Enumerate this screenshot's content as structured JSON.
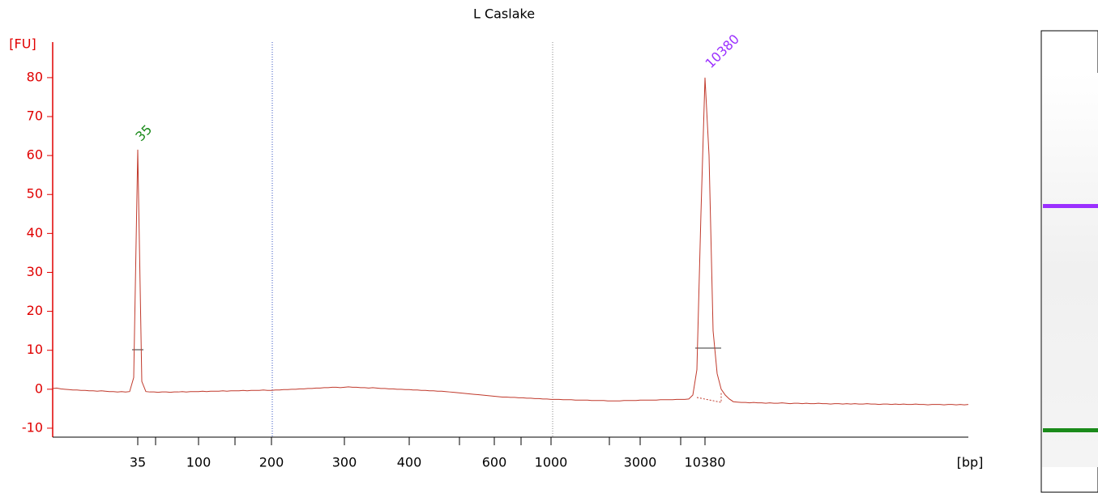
{
  "chart_data": {
    "type": "line",
    "title": "L Caslake",
    "ylabel": "[FU]",
    "xlabel": "[bp]",
    "ylim": [
      -12.3,
      88.5
    ],
    "yticks": [
      -10,
      0,
      10,
      20,
      30,
      40,
      50,
      60,
      70,
      80
    ],
    "grid": false,
    "categories": [
      null,
      null,
      null,
      null,
      null,
      null,
      null,
      null,
      null,
      null,
      null,
      null,
      null,
      null,
      null,
      null,
      null,
      null,
      null,
      null,
      null,
      "35",
      null,
      null,
      null,
      null,
      null,
      null,
      null,
      null,
      null,
      null,
      null,
      null,
      null,
      null,
      "100",
      null,
      null,
      null,
      null,
      null,
      null,
      null,
      null,
      null,
      null,
      null,
      null,
      null,
      null,
      null,
      null,
      null,
      "200",
      null,
      null,
      null,
      null,
      null,
      null,
      null,
      null,
      null,
      null,
      null,
      null,
      null,
      null,
      null,
      null,
      null,
      "300",
      null,
      null,
      null,
      null,
      null,
      null,
      null,
      null,
      null,
      null,
      null,
      null,
      null,
      null,
      null,
      "400",
      null,
      null,
      null,
      null,
      null,
      null,
      null,
      null,
      null,
      null,
      null,
      null,
      null,
      null,
      null,
      null,
      null,
      null,
      null,
      null,
      "600",
      null,
      null,
      null,
      null,
      null,
      null,
      null,
      null,
      null,
      null,
      null,
      null,
      null,
      "1000",
      null,
      null,
      null,
      null,
      null,
      null,
      null,
      null,
      null,
      null,
      null,
      null,
      null,
      null,
      null,
      null,
      null,
      null,
      null,
      null,
      null,
      "3000",
      null,
      null,
      null,
      null,
      null,
      null,
      null,
      null,
      null,
      null,
      null,
      null,
      null,
      null,
      null,
      "10380",
      null,
      null,
      null,
      null,
      null,
      null,
      null,
      null,
      null,
      null,
      null,
      null,
      null,
      null,
      null,
      null,
      null,
      null,
      null,
      null,
      null,
      null,
      null,
      null,
      null,
      null,
      null,
      null,
      null,
      null,
      null,
      null,
      null,
      null,
      null,
      null,
      null,
      null,
      null,
      null,
      null,
      null,
      null,
      null,
      null,
      null,
      null,
      null,
      null,
      null,
      null,
      null,
      null,
      null,
      null,
      null,
      null,
      null,
      null,
      null,
      null,
      null,
      null,
      null,
      null
    ],
    "series": [
      {
        "color": "#c0392b",
        "values": [
          0.2,
          0.3,
          0.1,
          0,
          -0.1,
          -0.2,
          -0.2,
          -0.3,
          -0.3,
          -0.4,
          -0.4,
          -0.5,
          -0.4,
          -0.5,
          -0.6,
          -0.6,
          -0.7,
          -0.6,
          -0.7,
          -0.6,
          3,
          61.5,
          2,
          -0.6,
          -0.7,
          -0.7,
          -0.8,
          -0.7,
          -0.7,
          -0.8,
          -0.7,
          -0.7,
          -0.6,
          -0.7,
          -0.6,
          -0.6,
          -0.6,
          -0.5,
          -0.6,
          -0.5,
          -0.5,
          -0.5,
          -0.4,
          -0.5,
          -0.4,
          -0.4,
          -0.4,
          -0.3,
          -0.4,
          -0.3,
          -0.3,
          -0.3,
          -0.2,
          -0.3,
          -0.3,
          -0.2,
          -0.2,
          -0.1,
          -0.1,
          0,
          0,
          0.1,
          0.1,
          0.2,
          0.2,
          0.3,
          0.3,
          0.4,
          0.4,
          0.5,
          0.5,
          0.4,
          0.5,
          0.6,
          0.5,
          0.5,
          0.4,
          0.4,
          0.3,
          0.4,
          0.3,
          0.2,
          0.2,
          0.1,
          0.1,
          0,
          0,
          -0.1,
          -0.1,
          -0.2,
          -0.2,
          -0.3,
          -0.3,
          -0.4,
          -0.4,
          -0.5,
          -0.5,
          -0.6,
          -0.7,
          -0.8,
          -0.9,
          -1,
          -1.1,
          -1.2,
          -1.3,
          -1.4,
          -1.5,
          -1.6,
          -1.7,
          -1.8,
          -1.9,
          -2,
          -2,
          -2.1,
          -2.1,
          -2.2,
          -2.2,
          -2.3,
          -2.3,
          -2.4,
          -2.4,
          -2.5,
          -2.5,
          -2.6,
          -2.6,
          -2.6,
          -2.7,
          -2.7,
          -2.7,
          -2.8,
          -2.8,
          -2.8,
          -2.8,
          -2.9,
          -2.9,
          -2.9,
          -2.9,
          -3,
          -3,
          -3,
          -3,
          -2.9,
          -2.9,
          -2.9,
          -2.9,
          -2.8,
          -2.8,
          -2.8,
          -2.8,
          -2.8,
          -2.7,
          -2.7,
          -2.7,
          -2.7,
          -2.6,
          -2.6,
          -2.6,
          -2.5,
          -1.5,
          5,
          45,
          80,
          60,
          15,
          4,
          0,
          -1.5,
          -2.5,
          -3.2,
          -3.3,
          -3.4,
          -3.4,
          -3.5,
          -3.4,
          -3.5,
          -3.5,
          -3.6,
          -3.5,
          -3.6,
          -3.6,
          -3.5,
          -3.6,
          -3.7,
          -3.6,
          -3.6,
          -3.7,
          -3.6,
          -3.7,
          -3.7,
          -3.6,
          -3.7,
          -3.7,
          -3.8,
          -3.7,
          -3.7,
          -3.8,
          -3.7,
          -3.8,
          -3.7,
          -3.8,
          -3.8,
          -3.7,
          -3.8,
          -3.8,
          -3.9,
          -3.8,
          -3.8,
          -3.9,
          -3.8,
          -3.9,
          -3.8,
          -3.9,
          -3.9,
          -3.8,
          -3.9,
          -3.9,
          -4,
          -3.9,
          -3.9,
          -3.9,
          -4,
          -3.9,
          -3.9,
          -4,
          -3.9,
          -4,
          -3.9
        ]
      }
    ],
    "annotations": [
      {
        "text": "35",
        "color": "#1a8a1a"
      },
      {
        "text": "10380",
        "color": "#9b30ff"
      }
    ]
  }
}
